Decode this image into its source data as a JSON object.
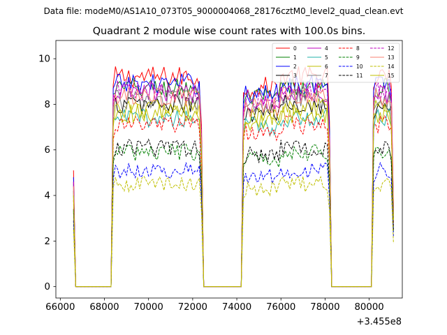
{
  "chart_data": {
    "type": "line",
    "suptitle": "Data file: modeM0/AS1A10_073T05_9000004068_28176cztM0_level2_quad_clean.evt",
    "title": "Quadrant 2 module wise count rates with 100.0s bins.",
    "xlabel": "",
    "ylabel": "",
    "x_offset_label": "+3.455e8",
    "xlim": [
      65800,
      81500
    ],
    "ylim": [
      -0.5,
      10.8
    ],
    "xticks": [
      66000,
      68000,
      70000,
      72000,
      74000,
      76000,
      78000,
      80000
    ],
    "xtick_labels": [
      "66000",
      "68000",
      "70000",
      "72000",
      "74000",
      "76000",
      "78000",
      "80000"
    ],
    "yticks": [
      0,
      2,
      4,
      6,
      8,
      10
    ],
    "ytick_labels": [
      "0",
      "2",
      "4",
      "6",
      "8",
      "10"
    ],
    "bin_size_s": 100,
    "x_start": 66600,
    "segments": [
      {
        "start": 66600,
        "end": 66700,
        "type": "edge"
      },
      {
        "start": 66700,
        "end": 68300,
        "type": "gap"
      },
      {
        "start": 68400,
        "end": 72400,
        "type": "data"
      },
      {
        "start": 72500,
        "end": 74200,
        "type": "gap"
      },
      {
        "start": 74300,
        "end": 78200,
        "type": "data"
      },
      {
        "start": 78300,
        "end": 80100,
        "type": "gap"
      },
      {
        "start": 80200,
        "end": 81100,
        "type": "data"
      }
    ],
    "legend_location": "upper right",
    "series": [
      {
        "name": "0",
        "color": "#ff0000",
        "dashed": false,
        "level": 9.2,
        "start_value": 5.1,
        "end_value": 3.5
      },
      {
        "name": "1",
        "color": "#008000",
        "dashed": false,
        "level": 8.7,
        "start_value": 4.5,
        "end_value": 3.2
      },
      {
        "name": "2",
        "color": "#0000ff",
        "dashed": false,
        "level": 8.9,
        "start_value": 4.8,
        "end_value": 3.4
      },
      {
        "name": "3",
        "color": "#000000",
        "dashed": false,
        "level": 8.0,
        "start_value": 4.2,
        "end_value": 3.0
      },
      {
        "name": "4",
        "color": "#bf00bf",
        "dashed": false,
        "level": 8.5,
        "start_value": 4.6,
        "end_value": 3.3
      },
      {
        "name": "5",
        "color": "#20b2aa",
        "dashed": false,
        "level": 7.4,
        "start_value": 4.0,
        "end_value": 2.9
      },
      {
        "name": "6",
        "color": "#bfbf00",
        "dashed": false,
        "level": 7.8,
        "start_value": 4.1,
        "end_value": 3.0
      },
      {
        "name": "7",
        "color": "#808080",
        "dashed": false,
        "level": 8.2,
        "start_value": 4.3,
        "end_value": 3.1
      },
      {
        "name": "8",
        "color": "#ff0000",
        "dashed": true,
        "level": 7.1,
        "start_value": 3.8,
        "end_value": 2.7
      },
      {
        "name": "9",
        "color": "#008000",
        "dashed": true,
        "level": 5.9,
        "start_value": 3.3,
        "end_value": 2.4
      },
      {
        "name": "10",
        "color": "#0000ff",
        "dashed": true,
        "level": 5.1,
        "start_value": 2.9,
        "end_value": 2.2
      },
      {
        "name": "11",
        "color": "#000000",
        "dashed": true,
        "level": 6.1,
        "start_value": 3.4,
        "end_value": 2.5
      },
      {
        "name": "12",
        "color": "#bf00bf",
        "dashed": true,
        "level": 8.6,
        "start_value": 4.6,
        "end_value": 3.3
      },
      {
        "name": "13",
        "color": "#fa8072",
        "dashed": false,
        "level": 8.3,
        "start_value": 4.4,
        "end_value": 3.1
      },
      {
        "name": "14",
        "color": "#bfbf00",
        "dashed": true,
        "level": 4.5,
        "start_value": 2.5,
        "end_value": 1.9
      },
      {
        "name": "15",
        "color": "#bfbf00",
        "dashed": false,
        "level": 7.6,
        "start_value": 4.0,
        "end_value": 2.9
      }
    ]
  }
}
